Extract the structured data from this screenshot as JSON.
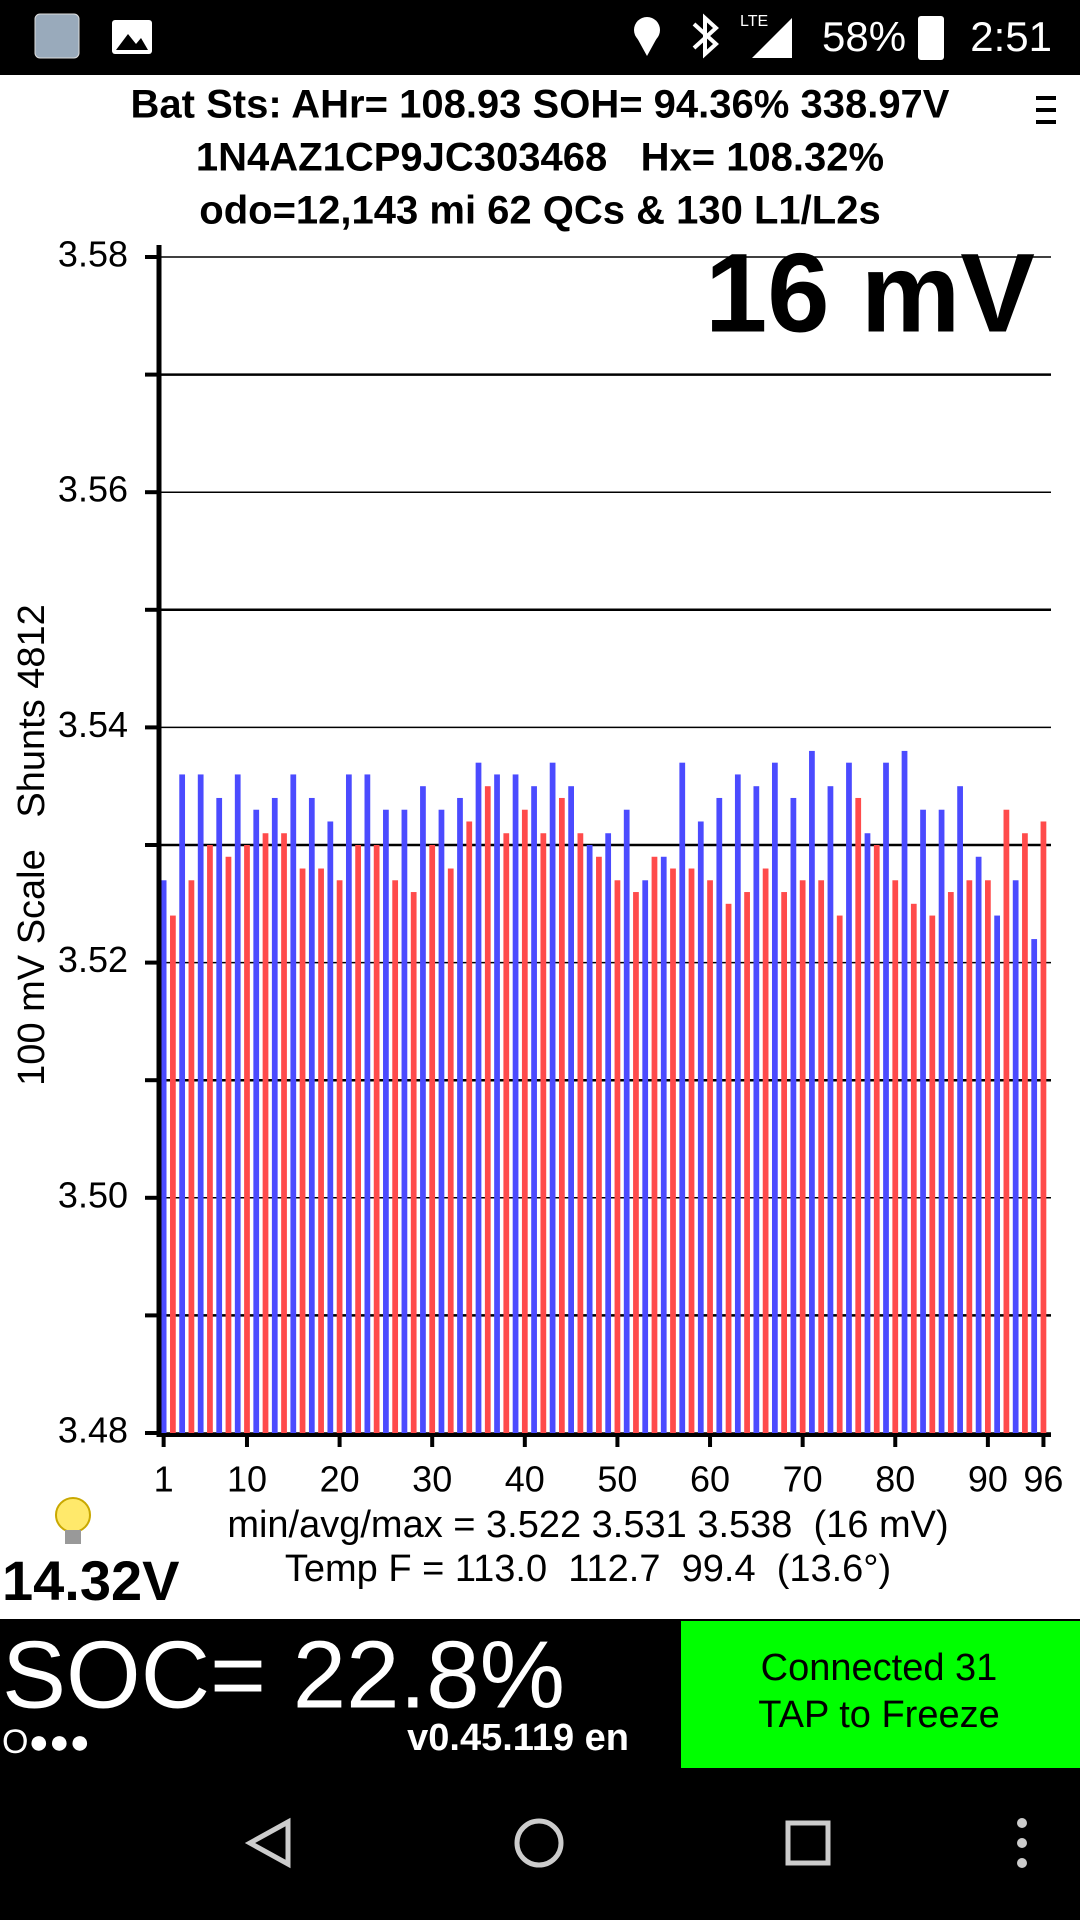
{
  "status_bar": {
    "network": "LTE",
    "battery": "58%",
    "time": "2:51"
  },
  "header": {
    "line1": "Bat Sts: AHr= 108.93 SOH= 94.36% 338.97V",
    "line2": "1N4AZ1CP9JC303468   Hx= 108.32%",
    "line3": "odo=12,143 mi 62 QCs & 130 L1/L2s"
  },
  "chart_data": {
    "type": "bar",
    "title": "16 mV",
    "y_label": "100 mV Scale   Shunts 4812",
    "x": [
      1,
      2,
      3,
      4,
      5,
      6,
      7,
      8,
      9,
      10,
      11,
      12,
      13,
      14,
      15,
      16,
      17,
      18,
      19,
      20,
      21,
      22,
      23,
      24,
      25,
      26,
      27,
      28,
      29,
      30,
      31,
      32,
      33,
      34,
      35,
      36,
      37,
      38,
      39,
      40,
      41,
      42,
      43,
      44,
      45,
      46,
      47,
      48,
      49,
      50,
      51,
      52,
      53,
      54,
      55,
      56,
      57,
      58,
      59,
      60,
      61,
      62,
      63,
      64,
      65,
      66,
      67,
      68,
      69,
      70,
      71,
      72,
      73,
      74,
      75,
      76,
      77,
      78,
      79,
      80,
      81,
      82,
      83,
      84,
      85,
      86,
      87,
      88,
      89,
      90,
      91,
      92,
      93,
      94,
      95,
      96
    ],
    "values": [
      3.527,
      3.524,
      3.536,
      3.527,
      3.536,
      3.53,
      3.534,
      3.529,
      3.536,
      3.53,
      3.533,
      3.531,
      3.534,
      3.531,
      3.536,
      3.528,
      3.534,
      3.528,
      3.532,
      3.527,
      3.536,
      3.53,
      3.536,
      3.53,
      3.533,
      3.527,
      3.533,
      3.526,
      3.535,
      3.53,
      3.533,
      3.528,
      3.534,
      3.532,
      3.537,
      3.535,
      3.536,
      3.531,
      3.536,
      3.533,
      3.535,
      3.531,
      3.537,
      3.534,
      3.535,
      3.531,
      3.53,
      3.529,
      3.531,
      3.527,
      3.533,
      3.526,
      3.527,
      3.529,
      3.529,
      3.528,
      3.537,
      3.528,
      3.532,
      3.527,
      3.534,
      3.525,
      3.536,
      3.526,
      3.535,
      3.528,
      3.537,
      3.526,
      3.534,
      3.527,
      3.538,
      3.527,
      3.535,
      3.524,
      3.537,
      3.534,
      3.531,
      3.53,
      3.537,
      3.527,
      3.538,
      3.525,
      3.533,
      3.524,
      3.533,
      3.526,
      3.535,
      3.527,
      3.529,
      3.527,
      3.524,
      3.533,
      3.527,
      3.531,
      3.522,
      3.532
    ],
    "bar_colors": [
      "#4b4bff",
      "#ff4b4b"
    ],
    "xlim": [
      0.5,
      96.6
    ],
    "xticks": [
      1,
      10,
      20,
      30,
      40,
      50,
      60,
      70,
      80,
      90,
      96
    ],
    "ylim": [
      3.48,
      3.58
    ],
    "yticks": [
      3.48,
      {
        "value": 3.5,
        "label": "3.50"
      },
      3.52,
      3.54,
      3.56,
      3.58
    ],
    "minor_yticks": [
      3.49,
      3.51,
      3.53,
      3.55,
      3.57
    ],
    "grid": true
  },
  "stats": {
    "minavgmax": "min/avg/max = 3.522 3.531 3.538  (16 mV)",
    "temp": "Temp F = 113.0  112.7  99.4  (13.6°)",
    "voltage": "14.32V"
  },
  "footer": {
    "soc": "SOC= 22.8%",
    "dots": "O●●●",
    "version": "v0.45.119 en",
    "button_line1": "Connected 31",
    "button_line2": "TAP to Freeze"
  }
}
